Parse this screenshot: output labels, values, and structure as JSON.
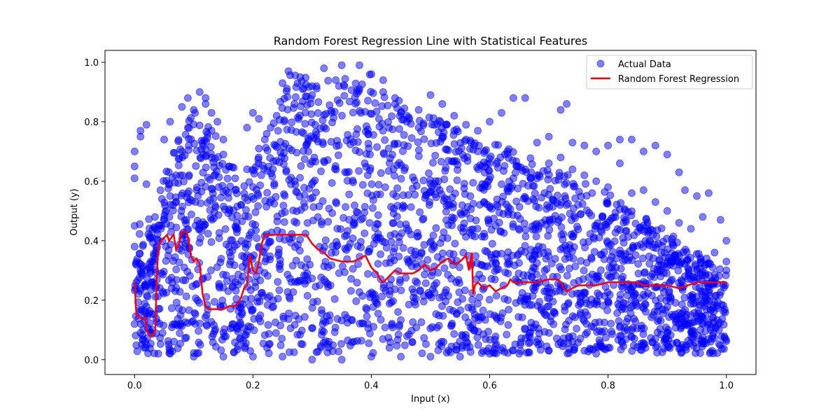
{
  "chart_data": {
    "type": "scatter",
    "title": "Random Forest Regression Line with Statistical Features",
    "xlabel": "Input (x)",
    "ylabel": "Output (y)",
    "xlim": [
      -0.05,
      1.05
    ],
    "ylim": [
      -0.05,
      1.04
    ],
    "xticks": [
      0.0,
      0.2,
      0.4,
      0.6,
      0.8,
      1.0
    ],
    "xtick_labels": [
      "0.0",
      "0.2",
      "0.4",
      "0.6",
      "0.8",
      "1.0"
    ],
    "yticks": [
      0.0,
      0.2,
      0.4,
      0.6,
      0.8,
      1.0
    ],
    "ytick_labels": [
      "0.0",
      "0.2",
      "0.4",
      "0.6",
      "0.8",
      "1.0"
    ],
    "grid": false,
    "legend_position": "top-right",
    "series": [
      {
        "name": "Actual Data",
        "kind": "scatter",
        "color": "#0000ff",
        "alpha": 0.5,
        "points": [
          [
            0.0,
            0.61
          ],
          [
            0.0,
            0.65
          ],
          [
            0.0,
            0.7
          ],
          [
            0.01,
            0.75
          ],
          [
            0.01,
            0.77
          ],
          [
            0.02,
            0.79
          ],
          [
            0.02,
            0.59
          ],
          [
            0.0,
            0.45
          ],
          [
            0.0,
            0.38
          ],
          [
            0.01,
            0.3
          ],
          [
            0.02,
            0.25
          ],
          [
            0.03,
            0.1
          ],
          [
            0.02,
            0.05
          ],
          [
            0.01,
            0.09
          ],
          [
            0.0,
            0.12
          ],
          [
            0.04,
            0.02
          ],
          [
            0.05,
            0.74
          ],
          [
            0.06,
            0.8
          ],
          [
            0.08,
            0.85
          ],
          [
            0.09,
            0.88
          ],
          [
            0.11,
            0.9
          ],
          [
            0.12,
            0.86
          ],
          [
            0.13,
            0.77
          ],
          [
            0.15,
            0.69
          ],
          [
            0.16,
            0.65
          ],
          [
            0.17,
            0.57
          ],
          [
            0.18,
            0.52
          ],
          [
            0.19,
            0.78
          ],
          [
            0.2,
            0.83
          ],
          [
            0.21,
            0.81
          ],
          [
            0.22,
            0.74
          ],
          [
            0.24,
            0.82
          ],
          [
            0.25,
            0.93
          ],
          [
            0.26,
            0.97
          ],
          [
            0.28,
            0.95
          ],
          [
            0.3,
            0.92
          ],
          [
            0.32,
            0.98
          ],
          [
            0.35,
            0.99
          ],
          [
            0.38,
            0.99
          ],
          [
            0.4,
            0.96
          ],
          [
            0.42,
            0.94
          ],
          [
            0.44,
            0.88
          ],
          [
            0.46,
            0.8
          ],
          [
            0.48,
            0.84
          ],
          [
            0.5,
            0.89
          ],
          [
            0.52,
            0.86
          ],
          [
            0.54,
            0.82
          ],
          [
            0.56,
            0.79
          ],
          [
            0.58,
            0.77
          ],
          [
            0.6,
            0.8
          ],
          [
            0.62,
            0.83
          ],
          [
            0.64,
            0.88
          ],
          [
            0.66,
            0.88
          ],
          [
            0.68,
            0.73
          ],
          [
            0.7,
            0.75
          ],
          [
            0.72,
            0.84
          ],
          [
            0.73,
            0.86
          ],
          [
            0.74,
            0.73
          ],
          [
            0.76,
            0.72
          ],
          [
            0.78,
            0.7
          ],
          [
            0.8,
            0.72
          ],
          [
            0.82,
            0.74
          ],
          [
            0.84,
            0.74
          ],
          [
            0.86,
            0.7
          ],
          [
            0.88,
            0.72
          ],
          [
            0.9,
            0.69
          ],
          [
            0.92,
            0.63
          ],
          [
            0.93,
            0.57
          ],
          [
            0.95,
            0.55
          ],
          [
            0.97,
            0.56
          ],
          [
            0.99,
            0.47
          ],
          [
            1.0,
            0.4
          ],
          [
            0.82,
            0.66
          ],
          [
            0.84,
            0.56
          ],
          [
            0.86,
            0.57
          ],
          [
            0.88,
            0.53
          ],
          [
            0.9,
            0.5
          ],
          [
            0.92,
            0.46
          ],
          [
            0.94,
            0.44
          ],
          [
            0.96,
            0.48
          ],
          [
            0.98,
            0.36
          ],
          [
            1.0,
            0.33
          ],
          [
            1.0,
            0.3
          ],
          [
            0.98,
            0.26
          ],
          [
            0.96,
            0.23
          ],
          [
            0.94,
            0.15
          ],
          [
            0.92,
            0.12
          ],
          [
            0.9,
            0.09
          ],
          [
            0.88,
            0.07
          ],
          [
            0.86,
            0.05
          ],
          [
            0.84,
            0.1
          ],
          [
            0.82,
            0.08
          ],
          [
            0.8,
            0.04
          ],
          [
            0.78,
            0.02
          ],
          [
            0.76,
            0.03
          ],
          [
            0.74,
            0.06
          ],
          [
            0.7,
            0.03
          ],
          [
            0.65,
            0.02
          ],
          [
            0.6,
            0.02
          ],
          [
            0.55,
            0.01
          ],
          [
            0.5,
            0.01
          ],
          [
            0.45,
            0.01
          ],
          [
            0.4,
            0.01
          ],
          [
            0.35,
            0.0
          ],
          [
            0.3,
            0.0
          ],
          [
            0.25,
            0.01
          ],
          [
            0.2,
            0.01
          ],
          [
            0.15,
            0.01
          ],
          [
            0.1,
            0.01
          ],
          [
            0.06,
            0.02
          ],
          [
            0.95,
            0.3
          ],
          [
            0.93,
            0.28
          ],
          [
            0.91,
            0.33
          ],
          [
            0.89,
            0.36
          ],
          [
            0.87,
            0.4
          ],
          [
            0.85,
            0.43
          ],
          [
            0.83,
            0.47
          ],
          [
            0.8,
            0.58
          ],
          [
            0.78,
            0.6
          ],
          [
            0.76,
            0.62
          ],
          [
            0.74,
            0.64
          ],
          [
            0.72,
            0.68
          ],
          [
            0.7,
            0.66
          ],
          [
            0.68,
            0.62
          ],
          [
            0.66,
            0.64
          ],
          [
            0.64,
            0.61
          ],
          [
            0.62,
            0.59
          ],
          [
            0.6,
            0.66
          ],
          [
            0.58,
            0.7
          ],
          [
            0.56,
            0.74
          ],
          [
            0.54,
            0.77
          ],
          [
            0.52,
            0.75
          ],
          [
            0.48,
            0.78
          ],
          [
            0.46,
            0.82
          ],
          [
            0.44,
            0.86
          ],
          [
            0.42,
            0.9
          ],
          [
            0.38,
            0.91
          ],
          [
            0.34,
            0.94
          ],
          [
            0.3,
            0.89
          ],
          [
            0.27,
            0.86
          ],
          [
            0.23,
            0.78
          ],
          [
            0.21,
            0.71
          ],
          [
            0.19,
            0.64
          ],
          [
            0.17,
            0.61
          ],
          [
            0.15,
            0.74
          ],
          [
            0.14,
            0.8
          ],
          [
            0.13,
            0.83
          ],
          [
            0.12,
            0.88
          ],
          [
            0.1,
            0.84
          ],
          [
            0.09,
            0.78
          ],
          [
            0.08,
            0.7
          ],
          [
            0.07,
            0.62
          ],
          [
            0.06,
            0.55
          ],
          [
            0.05,
            0.47
          ],
          [
            0.04,
            0.4
          ],
          [
            0.03,
            0.33
          ]
        ]
      },
      {
        "name": "Random Forest Regression",
        "kind": "line",
        "color": "#ff0000",
        "points": [
          [
            0.0,
            0.26
          ],
          [
            0.003,
            0.15
          ],
          [
            0.01,
            0.14
          ],
          [
            0.018,
            0.14
          ],
          [
            0.02,
            0.1
          ],
          [
            0.025,
            0.08
          ],
          [
            0.03,
            0.08
          ],
          [
            0.035,
            0.1
          ],
          [
            0.037,
            0.26
          ],
          [
            0.04,
            0.38
          ],
          [
            0.045,
            0.4
          ],
          [
            0.05,
            0.41
          ],
          [
            0.055,
            0.42
          ],
          [
            0.058,
            0.4
          ],
          [
            0.062,
            0.41
          ],
          [
            0.066,
            0.42
          ],
          [
            0.07,
            0.37
          ],
          [
            0.075,
            0.39
          ],
          [
            0.08,
            0.43
          ],
          [
            0.088,
            0.43
          ],
          [
            0.092,
            0.39
          ],
          [
            0.095,
            0.35
          ],
          [
            0.1,
            0.33
          ],
          [
            0.105,
            0.34
          ],
          [
            0.11,
            0.32
          ],
          [
            0.115,
            0.22
          ],
          [
            0.12,
            0.18
          ],
          [
            0.125,
            0.17
          ],
          [
            0.15,
            0.17
          ],
          [
            0.16,
            0.18
          ],
          [
            0.17,
            0.18
          ],
          [
            0.175,
            0.19
          ],
          [
            0.18,
            0.21
          ],
          [
            0.185,
            0.24
          ],
          [
            0.19,
            0.25
          ],
          [
            0.195,
            0.35
          ],
          [
            0.2,
            0.3
          ],
          [
            0.205,
            0.29
          ],
          [
            0.21,
            0.33
          ],
          [
            0.215,
            0.39
          ],
          [
            0.22,
            0.42
          ],
          [
            0.25,
            0.42
          ],
          [
            0.28,
            0.42
          ],
          [
            0.29,
            0.42
          ],
          [
            0.3,
            0.39
          ],
          [
            0.305,
            0.38
          ],
          [
            0.31,
            0.37
          ],
          [
            0.32,
            0.36
          ],
          [
            0.33,
            0.34
          ],
          [
            0.35,
            0.33
          ],
          [
            0.37,
            0.33
          ],
          [
            0.38,
            0.34
          ],
          [
            0.39,
            0.35
          ],
          [
            0.395,
            0.33
          ],
          [
            0.4,
            0.31
          ],
          [
            0.41,
            0.29
          ],
          [
            0.415,
            0.27
          ],
          [
            0.42,
            0.26
          ],
          [
            0.43,
            0.28
          ],
          [
            0.44,
            0.3
          ],
          [
            0.45,
            0.29
          ],
          [
            0.47,
            0.29
          ],
          [
            0.48,
            0.3
          ],
          [
            0.49,
            0.32
          ],
          [
            0.5,
            0.3
          ],
          [
            0.51,
            0.31
          ],
          [
            0.52,
            0.33
          ],
          [
            0.53,
            0.34
          ],
          [
            0.54,
            0.32
          ],
          [
            0.55,
            0.33
          ],
          [
            0.56,
            0.35
          ],
          [
            0.565,
            0.3
          ],
          [
            0.57,
            0.36
          ],
          [
            0.572,
            0.22
          ],
          [
            0.575,
            0.25
          ],
          [
            0.58,
            0.26
          ],
          [
            0.59,
            0.24
          ],
          [
            0.6,
            0.25
          ],
          [
            0.61,
            0.23
          ],
          [
            0.62,
            0.24
          ],
          [
            0.63,
            0.25
          ],
          [
            0.635,
            0.27
          ],
          [
            0.64,
            0.26
          ],
          [
            0.66,
            0.26
          ],
          [
            0.68,
            0.26
          ],
          [
            0.7,
            0.27
          ],
          [
            0.715,
            0.27
          ],
          [
            0.72,
            0.26
          ],
          [
            0.725,
            0.24
          ],
          [
            0.73,
            0.23
          ],
          [
            0.74,
            0.24
          ],
          [
            0.75,
            0.25
          ],
          [
            0.76,
            0.25
          ],
          [
            0.77,
            0.25
          ],
          [
            0.78,
            0.25
          ],
          [
            0.8,
            0.26
          ],
          [
            0.82,
            0.26
          ],
          [
            0.84,
            0.26
          ],
          [
            0.85,
            0.26
          ],
          [
            0.86,
            0.25
          ],
          [
            0.9,
            0.25
          ],
          [
            0.92,
            0.24
          ],
          [
            0.95,
            0.26
          ],
          [
            0.97,
            0.26
          ],
          [
            1.0,
            0.26
          ]
        ]
      }
    ]
  }
}
